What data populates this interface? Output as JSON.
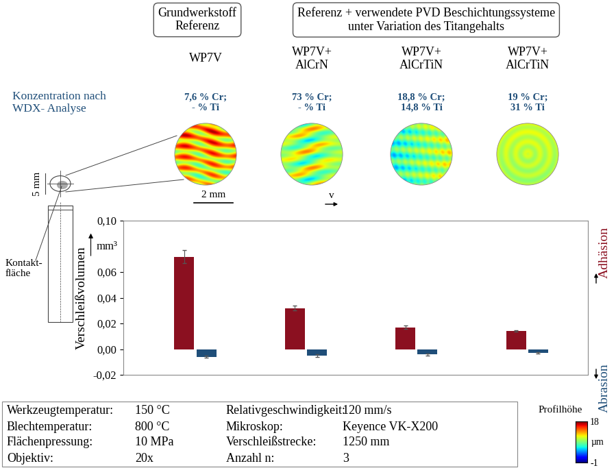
{
  "chart_data": {
    "type": "bar",
    "categories": [
      "WP7V",
      "WP7V+\nAlCrN",
      "WP7V+\nAlCrTiN",
      "WP7V+\nAlCrTiN"
    ],
    "series": [
      {
        "name": "Adhäsion",
        "color": "#8b1020",
        "values": [
          0.072,
          0.032,
          0.017,
          0.014
        ],
        "errors": [
          0.005,
          0.002,
          0.0012,
          0.0006
        ]
      },
      {
        "name": "Abrasion",
        "color": "#1f4e79",
        "values": [
          -0.006,
          -0.005,
          -0.004,
          -0.003
        ],
        "errors": [
          0.0008,
          0.0012,
          0.0008,
          0.0006
        ]
      }
    ],
    "y_label": "Verschleißvolumen",
    "y_unit": "mm³",
    "ylim": [
      -0.02,
      0.1
    ],
    "yticks": [
      {
        "value": -0.02,
        "label": "-0,02"
      },
      {
        "value": 0,
        "label": "0,00"
      },
      {
        "value": 0.02,
        "label": "0,02"
      },
      {
        "value": 0.04,
        "label": "0,04"
      },
      {
        "value": 0.06,
        "label": "0,06"
      },
      {
        "value": 0.1,
        "label": "0,10"
      }
    ],
    "grid": false,
    "tick_labels": "y"
  },
  "header": {
    "groups": [
      "Grundwerkstoff\nReferenz",
      "Referenz + verwendete PVD Beschichtungssysteme\nunter Variation des Titangehalts"
    ],
    "concentration_label": "Konzentration nach\nWDX- Analyse",
    "concentrations": [
      "7,6 % Cr;\n- % Ti",
      "73 % Cr;\n- % Ti",
      "18,8 % Cr;\n14,8 % Ti",
      "19 % Cr;\n31 % Ti"
    ]
  },
  "schematic": {
    "dimension": "5 mm",
    "contact_label": "Kontakt-\nfläche",
    "scale_bar": "2 mm",
    "velocity": "v"
  },
  "colorbar": {
    "label": "Profilhöhe",
    "unit": "µm",
    "range": [
      -1,
      18
    ],
    "ticks": [
      -1,
      18
    ]
  },
  "parameters": {
    "rows": [
      [
        "Werkzeugtemperatur:",
        "150 °C",
        "Relativgeschwindigkeit:",
        "120 mm/s"
      ],
      [
        "Blechtemperatur:",
        "800 °C",
        "Mikroskop:",
        "Keyence VK-X200"
      ],
      [
        "Flächenpressung:",
        "10 MPa",
        "Verschleißstrecke:",
        "1250 mm"
      ],
      [
        "Objektiv:",
        "20x",
        "Anzahl n:",
        "3"
      ]
    ]
  }
}
